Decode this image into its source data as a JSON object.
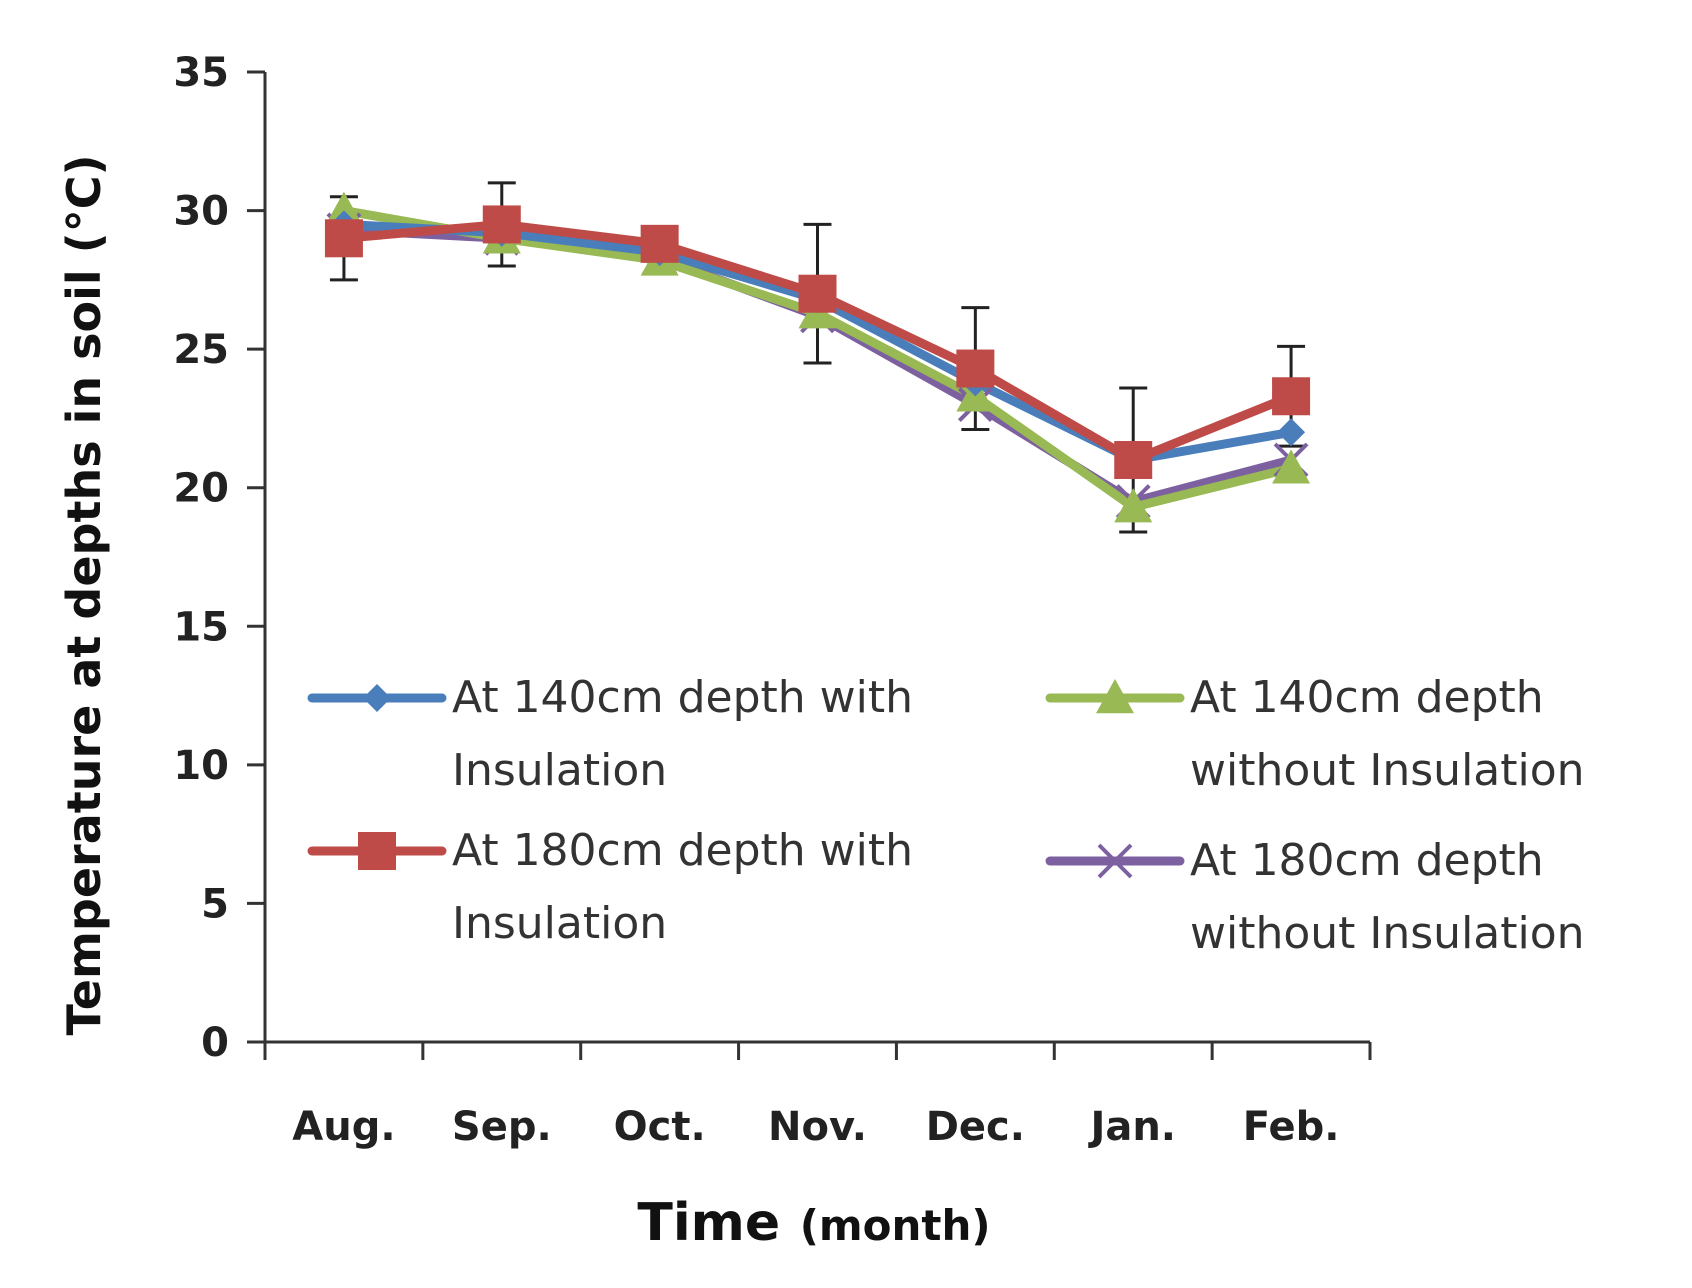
{
  "chart_data": {
    "type": "line",
    "categories": [
      "Aug.",
      "Sep.",
      "Oct.",
      "Nov.",
      "Dec.",
      "Jan.",
      "Feb."
    ],
    "xlabel": "Time (month)",
    "xlabel_main": "Time",
    "xlabel_unit": "(month)",
    "ylabel": "Temperature at depths in soil (°C)",
    "ylim": [
      0,
      35
    ],
    "yticks": [
      0,
      5,
      10,
      15,
      20,
      25,
      30,
      35
    ],
    "ytick_labels": [
      "0",
      "5",
      "10",
      "15",
      "20",
      "25",
      "30",
      "35"
    ],
    "grid": false,
    "legend": "center-right, two columns",
    "error_bar_series": "At 180cm depth with Insulation",
    "series": [
      {
        "name": "At 140cm depth with Insulation",
        "legend_lines": [
          "At 140cm depth with",
          "Insulation"
        ],
        "color": "#4a7ebb",
        "marker": "diamond",
        "values": [
          29.5,
          29.2,
          28.5,
          26.8,
          23.8,
          21.0,
          22.0
        ]
      },
      {
        "name": "At 180cm depth with Insulation",
        "legend_lines": [
          "At 180cm depth with",
          "Insulation"
        ],
        "color": "#be4b48",
        "marker": "square",
        "values": [
          29.0,
          29.5,
          28.8,
          27.0,
          24.3,
          21.0,
          23.3
        ],
        "errors": [
          1.5,
          1.5,
          0.0,
          2.5,
          2.2,
          2.6,
          1.8
        ]
      },
      {
        "name": "At 140cm depth without Insulation",
        "legend_lines": [
          "At 140cm depth",
          "without Insulation"
        ],
        "color": "#98b954",
        "marker": "triangle",
        "values": [
          30.0,
          29.0,
          28.2,
          26.3,
          23.3,
          19.3,
          20.7
        ]
      },
      {
        "name": "At 180cm depth without Insulation",
        "legend_lines": [
          "At 180cm depth",
          "without Insulation"
        ],
        "color": "#7d60a0",
        "marker": "x",
        "values": [
          29.3,
          29.0,
          28.3,
          26.2,
          23.0,
          19.5,
          21.0
        ]
      }
    ]
  }
}
